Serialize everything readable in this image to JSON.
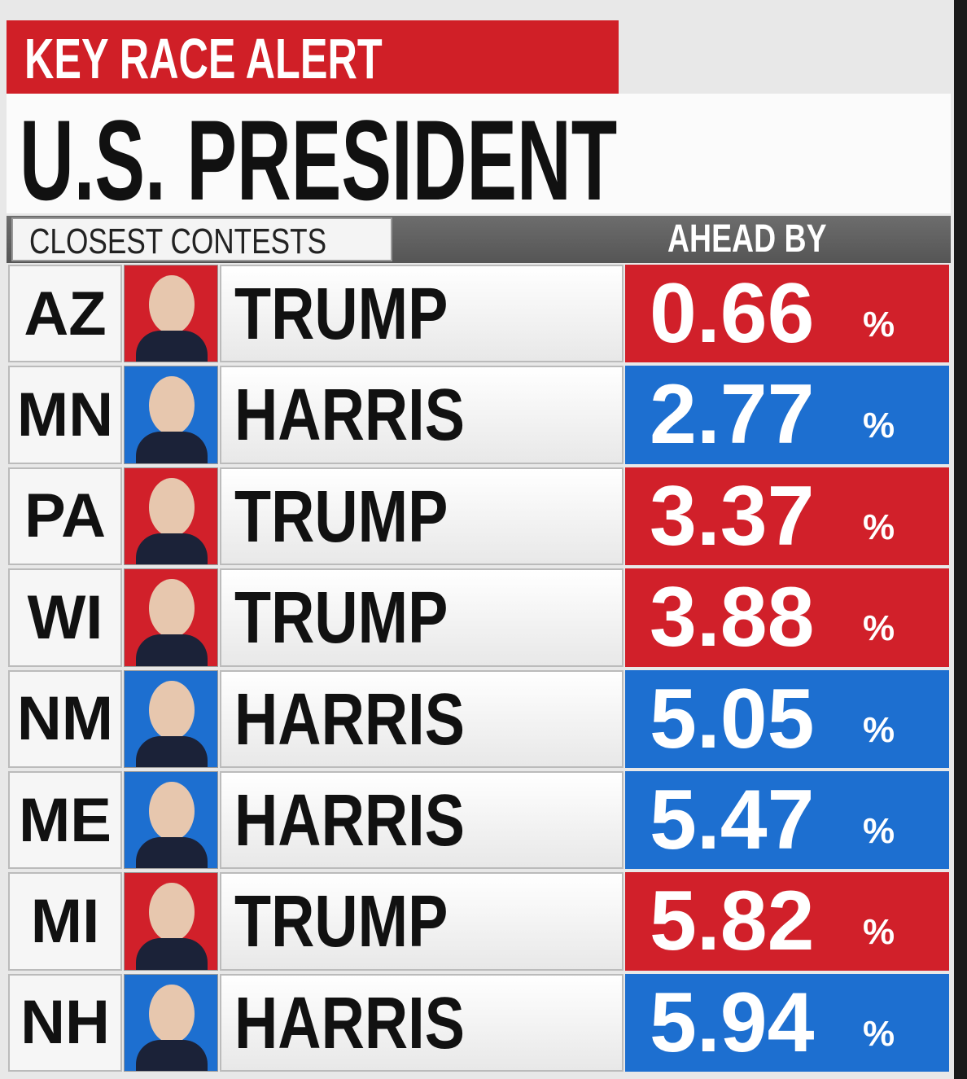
{
  "header": {
    "alert": "KEY RACE ALERT",
    "title": "U.S. PRESIDENT",
    "subtitle": "CLOSEST CONTESTS",
    "column_label": "AHEAD BY"
  },
  "table": {
    "rows": [
      {
        "state": "AZ",
        "candidate": "TRUMP",
        "margin": "0.66",
        "unit": "%",
        "color": "#d1202a"
      },
      {
        "state": "MN",
        "candidate": "HARRIS",
        "margin": "2.77",
        "unit": "%",
        "color": "#1d6fd0"
      },
      {
        "state": "PA",
        "candidate": "TRUMP",
        "margin": "3.37",
        "unit": "%",
        "color": "#d1202a"
      },
      {
        "state": "WI",
        "candidate": "TRUMP",
        "margin": "3.88",
        "unit": "%",
        "color": "#d1202a"
      },
      {
        "state": "NM",
        "candidate": "HARRIS",
        "margin": "5.05",
        "unit": "%",
        "color": "#1d6fd0"
      },
      {
        "state": "ME",
        "candidate": "HARRIS",
        "margin": "5.47",
        "unit": "%",
        "color": "#1d6fd0"
      },
      {
        "state": "MI",
        "candidate": "TRUMP",
        "margin": "5.82",
        "unit": "%",
        "color": "#d1202a"
      },
      {
        "state": "NH",
        "candidate": "HARRIS",
        "margin": "5.94",
        "unit": "%",
        "color": "#1d6fd0"
      }
    ]
  }
}
